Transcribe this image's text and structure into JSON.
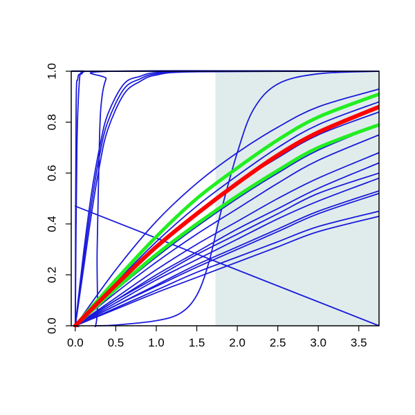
{
  "chart_data": {
    "type": "line",
    "title": "",
    "xlabel": "",
    "ylabel": "",
    "xlim": [
      -0.05,
      3.75
    ],
    "ylim": [
      0,
      1
    ],
    "grid": false,
    "legend": "none",
    "x_ticks": [
      "0.0",
      "0.5",
      "1.0",
      "1.5",
      "2.0",
      "2.5",
      "3.0",
      "3.5"
    ],
    "y_ticks": [
      "0.0",
      "0.2",
      "0.4",
      "0.6",
      "0.8",
      "1.0"
    ],
    "shaded_region": {
      "x_from": 1.73,
      "x_to": 3.75,
      "color": "#e0ecec"
    },
    "colors": {
      "curves": "#1a1adb",
      "highlight": "#ff0000",
      "band": "#22ee22"
    },
    "series": [
      {
        "kind": "blue",
        "x": [
          0,
          0.02,
          0.05,
          0.08,
          0.12,
          0.2,
          3.75
        ],
        "y": [
          0,
          0.7,
          0.96,
          0.99,
          1.0,
          1.0,
          1.0
        ]
      },
      {
        "kind": "blue",
        "x": [
          0,
          0.01,
          0.03,
          0.06,
          0.1,
          0.2,
          3.75
        ],
        "y": [
          0,
          0.85,
          0.97,
          0.99,
          1.0,
          1.0,
          1.0
        ]
      },
      {
        "kind": "blue",
        "x": [
          0,
          0.25,
          0.27,
          0.3,
          0.33,
          0.38,
          0.45,
          3.75
        ],
        "y": [
          0,
          0,
          0.3,
          0.75,
          0.9,
          0.97,
          1.0,
          1.0
        ]
      },
      {
        "kind": "blue",
        "x": [
          0,
          0.1,
          0.2,
          0.3,
          0.4,
          0.6,
          0.8,
          1.0,
          1.5,
          3.75
        ],
        "y": [
          0,
          0.25,
          0.48,
          0.67,
          0.8,
          0.93,
          0.97,
          0.99,
          1.0,
          1.0
        ]
      },
      {
        "kind": "blue",
        "x": [
          0,
          0.1,
          0.2,
          0.3,
          0.4,
          0.6,
          0.8,
          1.0,
          1.5,
          3.75
        ],
        "y": [
          0,
          0.28,
          0.52,
          0.7,
          0.83,
          0.95,
          0.98,
          0.995,
          1.0,
          1.0
        ]
      },
      {
        "kind": "blue",
        "x": [
          0,
          0.1,
          0.2,
          0.3,
          0.4,
          0.6,
          0.8,
          1.0,
          1.5,
          3.75
        ],
        "y": [
          0,
          0.22,
          0.44,
          0.63,
          0.77,
          0.91,
          0.96,
          0.985,
          0.998,
          1.0
        ]
      },
      {
        "kind": "blue",
        "x": [
          0.25,
          0.5,
          1.0,
          1.3,
          1.5,
          1.65,
          1.8,
          2.0,
          2.2,
          2.5,
          3.0,
          3.75
        ],
        "y": [
          0,
          0.003,
          0.02,
          0.05,
          0.12,
          0.25,
          0.45,
          0.68,
          0.85,
          0.95,
          0.99,
          1.0
        ]
      },
      {
        "kind": "blue",
        "x": [
          0,
          3.75
        ],
        "y": [
          0.47,
          0.0
        ]
      },
      {
        "kind": "blue",
        "x": [
          0,
          0.5,
          1.0,
          1.5,
          2.0,
          2.5,
          3.0,
          3.75
        ],
        "y": [
          0,
          0.22,
          0.41,
          0.56,
          0.68,
          0.78,
          0.86,
          0.93
        ]
      },
      {
        "kind": "blue",
        "x": [
          0,
          0.5,
          1.0,
          1.5,
          2.0,
          2.5,
          3.0,
          3.75
        ],
        "y": [
          0,
          0.17,
          0.33,
          0.47,
          0.59,
          0.7,
          0.79,
          0.88
        ]
      },
      {
        "kind": "blue",
        "x": [
          0,
          0.5,
          1.0,
          1.5,
          2.0,
          2.5,
          3.0,
          3.75
        ],
        "y": [
          0,
          0.16,
          0.31,
          0.44,
          0.56,
          0.66,
          0.75,
          0.84
        ]
      },
      {
        "kind": "blue",
        "x": [
          0,
          0.5,
          1.0,
          1.5,
          2.0,
          2.5,
          3.0,
          3.75
        ],
        "y": [
          0,
          0.14,
          0.27,
          0.39,
          0.5,
          0.6,
          0.69,
          0.79
        ]
      },
      {
        "kind": "blue",
        "x": [
          0,
          0.5,
          1.0,
          1.5,
          2.0,
          2.5,
          3.0,
          3.75
        ],
        "y": [
          0,
          0.13,
          0.25,
          0.36,
          0.46,
          0.56,
          0.65,
          0.75
        ]
      },
      {
        "kind": "blue",
        "x": [
          0,
          0.5,
          1.0,
          1.5,
          2.0,
          2.5,
          3.0,
          3.75
        ],
        "y": [
          0,
          0.11,
          0.22,
          0.32,
          0.41,
          0.5,
          0.58,
          0.68
        ]
      },
      {
        "kind": "blue",
        "x": [
          0,
          0.5,
          1.0,
          1.5,
          2.0,
          2.5,
          3.0,
          3.75
        ],
        "y": [
          0,
          0.1,
          0.2,
          0.29,
          0.38,
          0.46,
          0.54,
          0.64
        ]
      },
      {
        "kind": "blue",
        "x": [
          0,
          0.5,
          1.0,
          1.5,
          2.0,
          2.5,
          3.0,
          3.75
        ],
        "y": [
          0,
          0.1,
          0.19,
          0.28,
          0.36,
          0.44,
          0.52,
          0.6
        ]
      },
      {
        "kind": "blue",
        "x": [
          0,
          0.5,
          1.0,
          1.5,
          2.0,
          2.5,
          3.0,
          3.75
        ],
        "y": [
          0,
          0.09,
          0.18,
          0.26,
          0.34,
          0.42,
          0.49,
          0.58
        ]
      },
      {
        "kind": "blue",
        "x": [
          0,
          0.5,
          1.0,
          1.5,
          2.0,
          2.5,
          3.0,
          3.75
        ],
        "y": [
          0,
          0.08,
          0.16,
          0.24,
          0.31,
          0.38,
          0.45,
          0.53
        ]
      },
      {
        "kind": "blue",
        "x": [
          0,
          0.5,
          1.0,
          1.5,
          2.0,
          2.5,
          3.0,
          3.75
        ],
        "y": [
          0,
          0.08,
          0.155,
          0.23,
          0.3,
          0.37,
          0.44,
          0.52
        ]
      },
      {
        "kind": "blue",
        "x": [
          0,
          0.5,
          1.0,
          1.5,
          2.0,
          2.5,
          3.0,
          3.75
        ],
        "y": [
          0,
          0.07,
          0.14,
          0.21,
          0.27,
          0.33,
          0.39,
          0.45
        ]
      },
      {
        "kind": "blue",
        "x": [
          0,
          0.5,
          1.0,
          1.5,
          2.0,
          2.5,
          3.0,
          3.75
        ],
        "y": [
          0,
          0.065,
          0.13,
          0.19,
          0.25,
          0.31,
          0.37,
          0.43
        ]
      },
      {
        "kind": "band",
        "x": [
          0,
          0.5,
          1.0,
          1.5,
          2.0,
          2.5,
          3.0,
          3.75
        ],
        "y": [
          0,
          0.18,
          0.35,
          0.5,
          0.62,
          0.73,
          0.82,
          0.91
        ]
      },
      {
        "kind": "band",
        "x": [
          0,
          0.5,
          1.0,
          1.5,
          2.0,
          2.5,
          3.0,
          3.75
        ],
        "y": [
          0,
          0.145,
          0.28,
          0.4,
          0.51,
          0.61,
          0.7,
          0.79
        ]
      },
      {
        "kind": "highlight",
        "x": [
          0,
          0.5,
          1.0,
          1.5,
          2.0,
          2.5,
          3.0,
          3.75
        ],
        "y": [
          0,
          0.16,
          0.31,
          0.44,
          0.56,
          0.67,
          0.76,
          0.86
        ]
      }
    ]
  }
}
